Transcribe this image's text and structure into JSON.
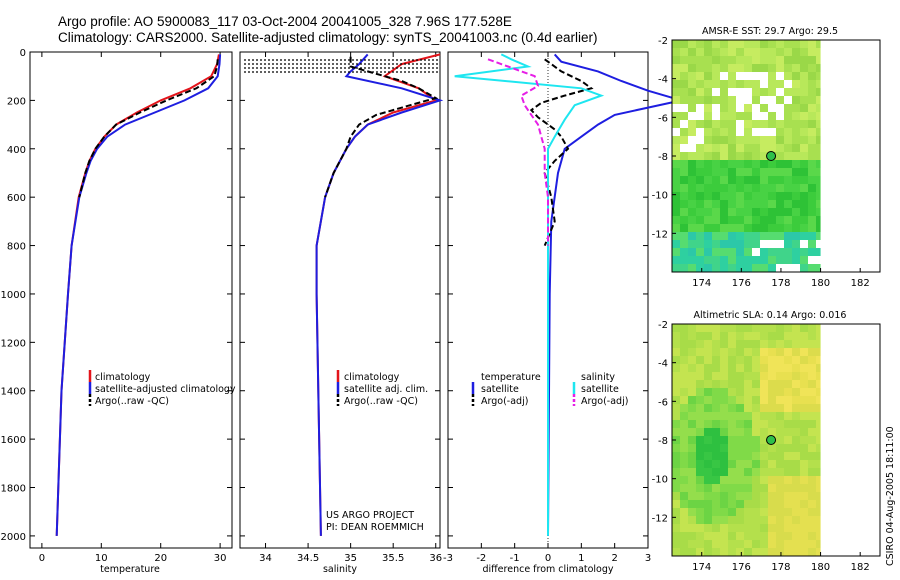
{
  "header": {
    "line1": "Argo profile: AO 5900083_117 03-Oct-2004 20041005_328 7.96S 177.528E",
    "line2": "Climatology: CARS2000. Satellite-adjusted climatology: synTS_20041003.nc (0.4d earlier)"
  },
  "colors": {
    "red": "#e3141b",
    "blue": "#1e1ee0",
    "black": "#000000",
    "cyan": "#1ee6f0",
    "magenta": "#e61ee6"
  },
  "chart_data": [
    {
      "type": "line",
      "id": "temperature",
      "xlabel": "temperature",
      "ylabel": "",
      "xlim": [
        -2,
        32
      ],
      "ylim": [
        2050,
        0
      ],
      "xticks": [
        0,
        10,
        20,
        30
      ],
      "yticks": [
        0,
        200,
        400,
        600,
        800,
        1000,
        1200,
        1400,
        1600,
        1800,
        2000
      ],
      "legend": [
        "climatology",
        "satellite-adjusted climatology",
        "Argo(..raw -QC)"
      ],
      "series": [
        {
          "name": "climatology",
          "color": "red",
          "depth": [
            10,
            50,
            100,
            150,
            200,
            250,
            300,
            350,
            400,
            450,
            500,
            600,
            800,
            1000,
            1400,
            2000
          ],
          "values": [
            29.8,
            29.5,
            28.5,
            25,
            20,
            16,
            12.5,
            10.5,
            9,
            8,
            7.3,
            6.2,
            5,
            4.4,
            3.3,
            2.5
          ]
        },
        {
          "name": "satellite-adjusted climatology",
          "color": "blue",
          "depth": [
            10,
            50,
            100,
            150,
            200,
            250,
            300,
            350,
            400,
            450,
            500,
            600,
            800,
            1000,
            1400,
            2000
          ],
          "values": [
            30,
            29.9,
            29.6,
            28,
            24,
            19,
            14,
            11,
            9.3,
            8.2,
            7.5,
            6.3,
            5,
            4.4,
            3.3,
            2.5
          ]
        },
        {
          "name": "Argo(..raw -QC)",
          "color": "black",
          "dash": true,
          "depth": [
            30,
            60,
            100,
            150,
            200,
            250,
            300,
            350,
            400,
            450,
            500,
            600
          ],
          "values": [
            29.6,
            29.5,
            29,
            26,
            21,
            16.5,
            12.5,
            10.5,
            9,
            8,
            7.3,
            6.3
          ]
        }
      ]
    },
    {
      "type": "line",
      "id": "salinity",
      "xlabel": "salinity",
      "xlim": [
        33.7,
        36.05
      ],
      "ylim": [
        2050,
        0
      ],
      "xticks": [
        34,
        34.5,
        35,
        35.5,
        36
      ],
      "xticklabels": [
        "34",
        "34.5",
        "35",
        "35.5",
        "36"
      ],
      "legend": [
        "climatology",
        "satellite adj. clim.",
        "Argo(..raw -QC)"
      ],
      "annotation": [
        "US ARGO PROJECT",
        "PI: DEAN ROEMMICH"
      ],
      "series": [
        {
          "name": "climatology",
          "color": "red",
          "depth": [
            10,
            50,
            100,
            150,
            200,
            250,
            300,
            350,
            400,
            500,
            600,
            800,
            1000,
            1400,
            2000
          ],
          "values": [
            36.05,
            35.6,
            35.4,
            35.8,
            36,
            35.5,
            35.2,
            35.05,
            34.95,
            34.8,
            34.7,
            34.6,
            34.6,
            34.62,
            34.65
          ]
        },
        {
          "name": "satellite adj. clim.",
          "color": "blue",
          "depth": [
            10,
            50,
            80,
            100,
            150,
            200,
            250,
            300,
            350,
            400,
            500,
            600,
            800,
            1000,
            1400,
            2000
          ],
          "values": [
            35.2,
            35.1,
            35,
            34.95,
            35.6,
            36.05,
            35.6,
            35.2,
            35.05,
            34.95,
            34.8,
            34.7,
            34.6,
            34.6,
            34.62,
            34.65
          ]
        },
        {
          "name": "Argo(..raw -QC)",
          "color": "black",
          "dash": true,
          "depth": [
            20,
            60,
            90,
            120,
            150,
            190,
            220,
            260,
            300,
            350,
            400,
            500,
            600
          ],
          "values": [
            35.0,
            35.0,
            35.3,
            35.6,
            35.8,
            36.0,
            35.7,
            35.3,
            35.1,
            35.0,
            34.95,
            34.8,
            34.7
          ]
        }
      ]
    },
    {
      "type": "line",
      "id": "difference",
      "xlabel": "difference from climatology",
      "xlim": [
        -3,
        3
      ],
      "ylim": [
        2050,
        0
      ],
      "xticks": [
        -3,
        -2,
        -1,
        0,
        1,
        2,
        3
      ],
      "legend_left": [
        "temperature",
        "satellite",
        "Argo(-adj)"
      ],
      "legend_right": [
        "salinity",
        "satellite",
        "Argo(-adj)"
      ],
      "series": [
        {
          "name": "temperature satellite",
          "color": "blue",
          "depth": [
            10,
            40,
            80,
            120,
            160,
            200,
            230,
            260,
            300,
            350,
            400,
            500,
            700,
            1000,
            2000
          ],
          "values": [
            0.2,
            0.4,
            1.5,
            2.2,
            3.0,
            4.0,
            3.0,
            2.0,
            1.5,
            1.0,
            0.5,
            0.3,
            0.1,
            0.05,
            0
          ]
        },
        {
          "name": "temperature Argo(-adj)",
          "color": "black",
          "dash": true,
          "depth": [
            30,
            80,
            120,
            150,
            180,
            210,
            240,
            270,
            320,
            350,
            400,
            450,
            500,
            600,
            700,
            800
          ],
          "values": [
            -0.1,
            0.4,
            1.0,
            1.3,
            0.5,
            -0.2,
            -0.5,
            -0.3,
            0.2,
            0.4,
            0.6,
            0.2,
            -0.1,
            0.1,
            0.2,
            -0.1
          ]
        },
        {
          "name": "salinity satellite",
          "color": "cyan",
          "depth": [
            10,
            30,
            60,
            100,
            150,
            180,
            220,
            280,
            350,
            400,
            500,
            800,
            1200,
            2000
          ],
          "values": [
            -1.4,
            -1.1,
            -0.6,
            -2.8,
            1.0,
            1.6,
            0.8,
            0.5,
            0.2,
            0,
            0,
            0,
            0,
            0
          ]
        },
        {
          "name": "salinity Argo(-adj)",
          "color": "magenta",
          "dash": true,
          "depth": [
            30,
            60,
            100,
            140,
            180,
            220,
            260,
            300,
            350,
            400,
            500,
            600,
            800
          ],
          "values": [
            -1.8,
            -1.2,
            -0.4,
            -0.3,
            -0.8,
            -0.7,
            -0.5,
            -0.3,
            -0.2,
            -0.1,
            -0.1,
            0,
            0
          ]
        }
      ]
    },
    {
      "type": "heatmap",
      "id": "sst",
      "title": "AMSR-E SST: 29.7 Argo: 29.5",
      "xticks": [
        174,
        176,
        178,
        180,
        182
      ],
      "yticks": [
        -2,
        -4,
        -6,
        -8,
        -10,
        -12
      ],
      "xlim": [
        172.5,
        183
      ],
      "ylim": [
        -14,
        -2
      ],
      "argo_position": [
        177.5,
        -8
      ]
    },
    {
      "type": "heatmap",
      "id": "sla",
      "title": "Altimetric SLA: 0.14 Argo: 0.016",
      "xticks": [
        174,
        176,
        178,
        180,
        182
      ],
      "yticks": [
        -2,
        -4,
        -6,
        -8,
        -10,
        -12
      ],
      "xlim": [
        172.5,
        183
      ],
      "ylim": [
        -14,
        -2
      ],
      "argo_position": [
        177.5,
        -8
      ]
    }
  ],
  "footer": {
    "credit": "CSIRO 04-Aug-2005 18:11:00"
  }
}
